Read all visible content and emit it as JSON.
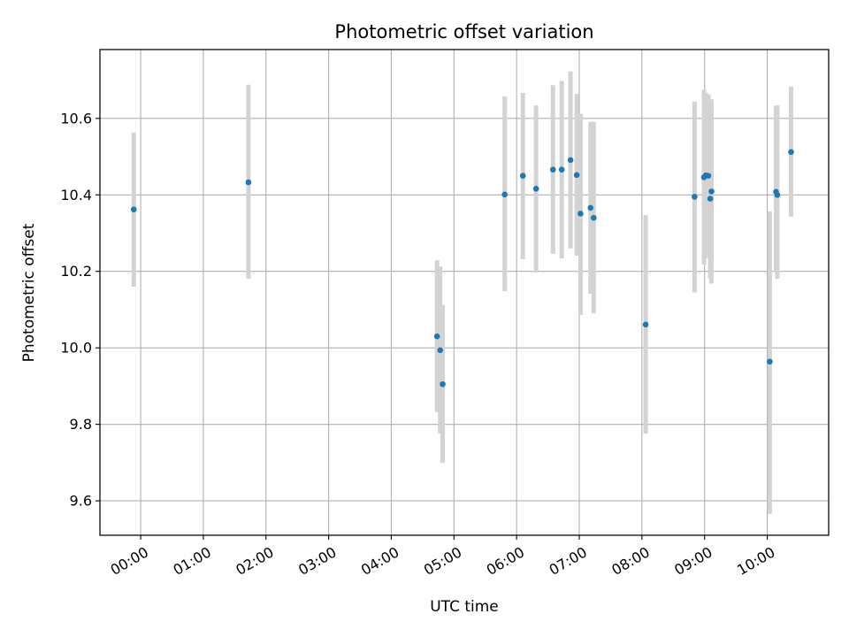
{
  "chart_data": {
    "type": "scatter",
    "title": "Photometric offset variation",
    "xlabel": "UTC time",
    "ylabel": "Photometric offset",
    "x_unit": "hours",
    "xlim": [
      -0.65,
      10.98
    ],
    "ylim": [
      9.51,
      10.78
    ],
    "grid": true,
    "x_ticks": [
      {
        "value": 0,
        "label": "00:00"
      },
      {
        "value": 1,
        "label": "01:00"
      },
      {
        "value": 2,
        "label": "02:00"
      },
      {
        "value": 3,
        "label": "03:00"
      },
      {
        "value": 4,
        "label": "04:00"
      },
      {
        "value": 5,
        "label": "05:00"
      },
      {
        "value": 6,
        "label": "06:00"
      },
      {
        "value": 7,
        "label": "07:00"
      },
      {
        "value": 8,
        "label": "08:00"
      },
      {
        "value": 9,
        "label": "09:00"
      },
      {
        "value": 10,
        "label": "10:00"
      }
    ],
    "y_ticks": [
      {
        "value": 9.6,
        "label": "9.6"
      },
      {
        "value": 9.8,
        "label": "9.8"
      },
      {
        "value": 10.0,
        "label": "10.0"
      },
      {
        "value": 10.2,
        "label": "10.2"
      },
      {
        "value": 10.4,
        "label": "10.4"
      },
      {
        "value": 10.6,
        "label": "10.6"
      }
    ],
    "colors": {
      "points": "#1f77b4",
      "error_bars": "#d3d3d3",
      "grid": "#b0b0b0"
    },
    "points": [
      {
        "x": -0.11,
        "y": 10.362,
        "lo": 10.16,
        "hi": 10.563
      },
      {
        "x": 1.72,
        "y": 10.433,
        "lo": 10.181,
        "hi": 10.688
      },
      {
        "x": 4.73,
        "y": 10.03,
        "lo": 9.832,
        "hi": 10.229
      },
      {
        "x": 4.78,
        "y": 9.994,
        "lo": 9.776,
        "hi": 10.213
      },
      {
        "x": 4.82,
        "y": 9.905,
        "lo": 9.699,
        "hi": 10.112
      },
      {
        "x": 5.81,
        "y": 10.401,
        "lo": 10.148,
        "hi": 10.657
      },
      {
        "x": 6.1,
        "y": 10.45,
        "lo": 10.232,
        "hi": 10.667
      },
      {
        "x": 6.31,
        "y": 10.416,
        "lo": 10.197,
        "hi": 10.634
      },
      {
        "x": 6.58,
        "y": 10.466,
        "lo": 10.246,
        "hi": 10.687
      },
      {
        "x": 6.72,
        "y": 10.466,
        "lo": 10.234,
        "hi": 10.698
      },
      {
        "x": 6.86,
        "y": 10.491,
        "lo": 10.26,
        "hi": 10.723
      },
      {
        "x": 6.96,
        "y": 10.452,
        "lo": 10.241,
        "hi": 10.664
      },
      {
        "x": 7.02,
        "y": 10.351,
        "lo": 10.086,
        "hi": 10.612
      },
      {
        "x": 7.18,
        "y": 10.366,
        "lo": 10.141,
        "hi": 10.591
      },
      {
        "x": 7.23,
        "y": 10.34,
        "lo": 10.09,
        "hi": 10.591
      },
      {
        "x": 8.06,
        "y": 10.061,
        "lo": 9.776,
        "hi": 10.347
      },
      {
        "x": 8.84,
        "y": 10.395,
        "lo": 10.145,
        "hi": 10.644
      },
      {
        "x": 8.99,
        "y": 10.446,
        "lo": 10.218,
        "hi": 10.675
      },
      {
        "x": 9.02,
        "y": 10.451,
        "lo": 10.235,
        "hi": 10.667
      },
      {
        "x": 9.06,
        "y": 10.45,
        "lo": 10.236,
        "hi": 10.663
      },
      {
        "x": 9.09,
        "y": 10.39,
        "lo": 10.181,
        "hi": 10.599
      },
      {
        "x": 9.11,
        "y": 10.409,
        "lo": 10.168,
        "hi": 10.65
      },
      {
        "x": 10.04,
        "y": 9.964,
        "lo": 9.566,
        "hi": 10.357
      },
      {
        "x": 10.14,
        "y": 10.408,
        "lo": 10.198,
        "hi": 10.633
      },
      {
        "x": 10.16,
        "y": 10.4,
        "lo": 10.181,
        "hi": 10.634
      },
      {
        "x": 10.38,
        "y": 10.512,
        "lo": 10.343,
        "hi": 10.683
      }
    ]
  }
}
